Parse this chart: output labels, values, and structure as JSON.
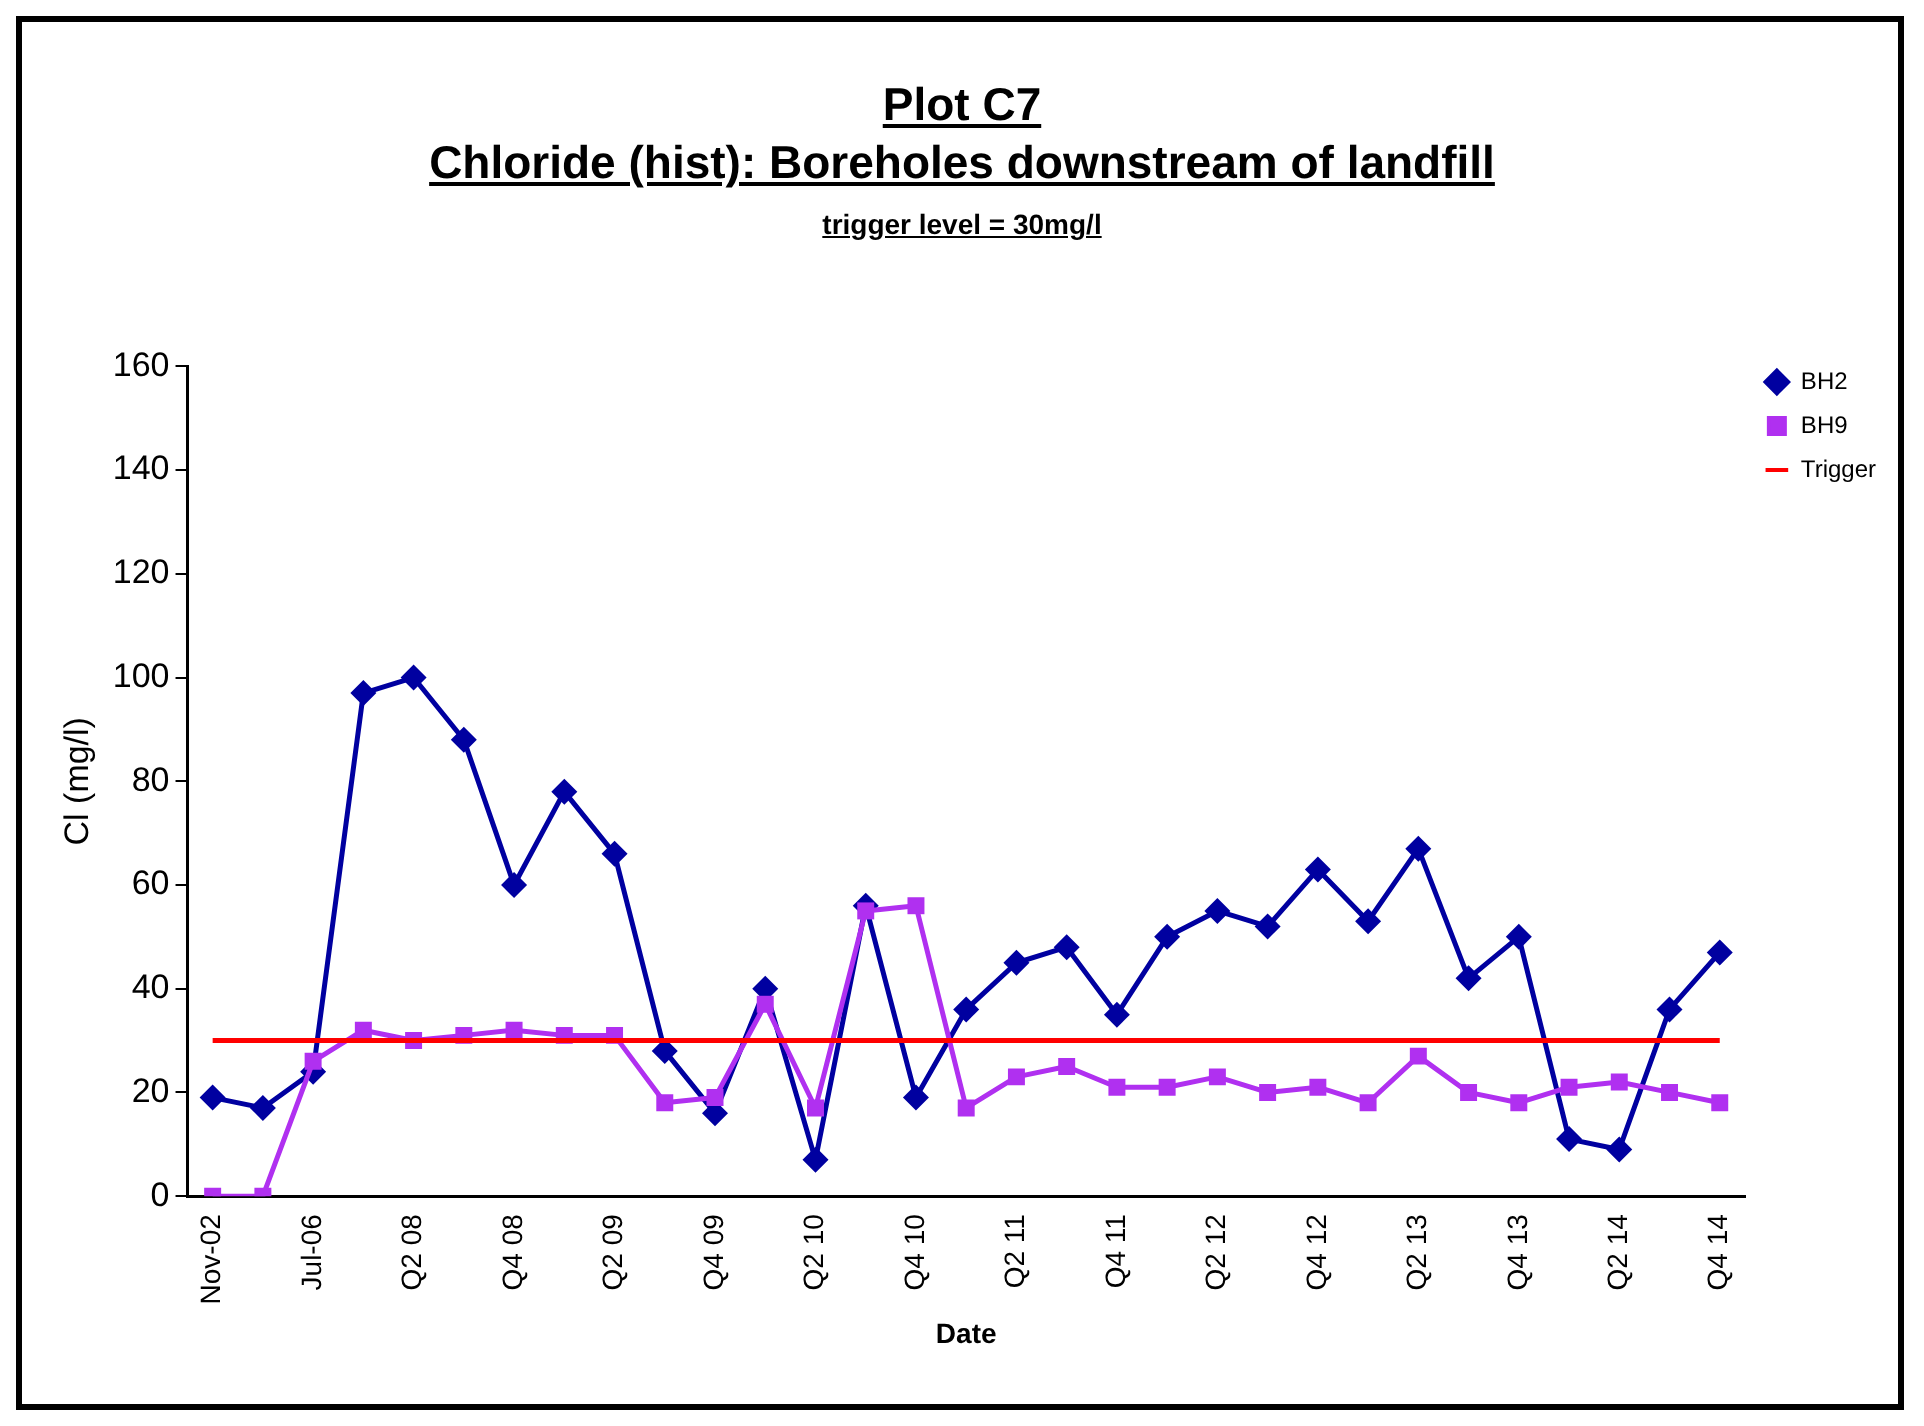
{
  "chart_data": {
    "type": "line",
    "title": "Plot C7\nChloride (hist): Boreholes downstream of landfill",
    "subtitle": "trigger level = 30mg/l",
    "xlabel": "Date",
    "ylabel": "Cl (mg/l)",
    "categories": [
      "Nov-02",
      null,
      "Jul-06",
      null,
      "Q2 08",
      null,
      "Q4 08",
      null,
      "Q2 09",
      null,
      "Q4 09",
      null,
      "Q2 10",
      null,
      "Q4 10",
      null,
      "Q2 11",
      null,
      "Q4 11",
      null,
      "Q2 12",
      null,
      "Q4 12",
      null,
      "Q2 13",
      null,
      "Q4 13",
      null,
      "Q2 14",
      null,
      "Q4 14"
    ],
    "series": [
      {
        "name": "BH2",
        "color": "#0000a0",
        "marker": "diamond",
        "values": [
          19,
          17,
          24,
          97,
          100,
          88,
          60,
          78,
          66,
          28,
          16,
          40,
          7,
          56,
          19,
          36,
          45,
          48,
          35,
          50,
          55,
          52,
          63,
          53,
          67,
          42,
          50,
          11,
          9,
          36,
          47
        ]
      },
      {
        "name": "BH9",
        "color": "#b030f0",
        "marker": "square",
        "values": [
          0,
          0,
          26,
          32,
          30,
          31,
          32,
          31,
          31,
          18,
          19,
          37,
          17,
          55,
          56,
          17,
          23,
          25,
          21,
          21,
          23,
          20,
          21,
          18,
          27,
          20,
          18,
          21,
          22,
          20,
          18
        ]
      },
      {
        "name": "Trigger",
        "color": "#ff0000",
        "marker": "none",
        "values": [
          30,
          30,
          30,
          30,
          30,
          30,
          30,
          30,
          30,
          30,
          30,
          30,
          30,
          30,
          30,
          30,
          30,
          30,
          30,
          30,
          30,
          30,
          30,
          30,
          30,
          30,
          30,
          30,
          30,
          30,
          30
        ]
      }
    ],
    "ylim": [
      0,
      160
    ],
    "yticks": [
      0,
      20,
      40,
      60,
      80,
      100,
      120,
      140,
      160
    ],
    "grid": false,
    "legend": "right",
    "line_style": "solid"
  }
}
